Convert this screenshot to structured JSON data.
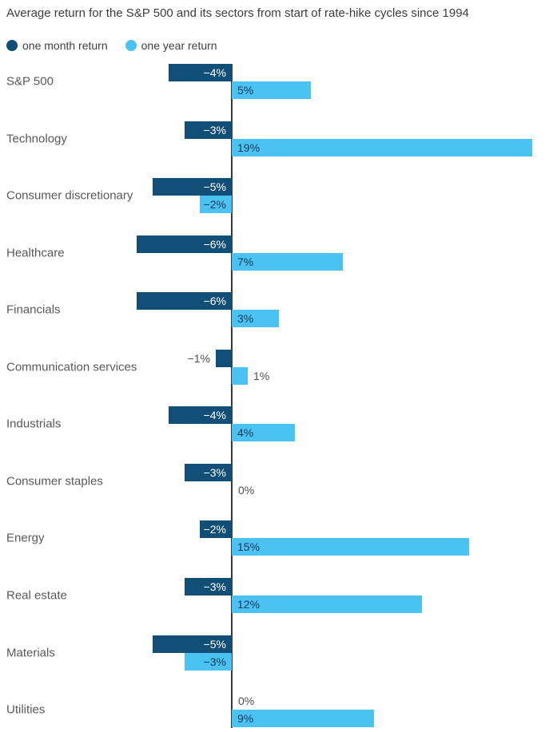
{
  "title": "Average return for the S&P 500 and its sectors from start of rate-hike cycles since 1994",
  "colors": {
    "one_month": "#114e78",
    "one_year": "#4ac2f2",
    "axis": "#383838",
    "inside_dark_text": "#ffffff",
    "inside_light_text": "#16395b",
    "outside_text": "#4f4f4f"
  },
  "legend": {
    "items": [
      {
        "label": "one month return"
      },
      {
        "label": "one year return"
      }
    ]
  },
  "chart_data": {
    "type": "bar",
    "orientation": "horizontal",
    "title": "Average return for the S&P 500 and its sectors from start of rate-hike cycles since 1994",
    "xlim": [
      -6,
      20
    ],
    "grid": false,
    "legend_position": "top-left",
    "categories": [
      "S&P 500",
      "Technology",
      "Consumer discretionary",
      "Healthcare",
      "Financials",
      "Communication services",
      "Industrials",
      "Consumer staples",
      "Energy",
      "Real estate",
      "Materials",
      "Utilities"
    ],
    "series": [
      {
        "name": "one month return",
        "values": [
          -4,
          -3,
          -5,
          -6,
          -6,
          -1,
          -4,
          -3,
          -2,
          -3,
          -5,
          0
        ],
        "labels": [
          "−4%",
          "−3%",
          "−5%",
          "−6%",
          "−6%",
          "−1%",
          "−4%",
          "−3%",
          "−2%",
          "−3%",
          "−5%",
          "0%"
        ]
      },
      {
        "name": "one year return",
        "values": [
          5,
          19,
          -2,
          7,
          3,
          1,
          4,
          0,
          15,
          12,
          -3,
          9
        ],
        "labels": [
          "5%",
          "19%",
          "−2%",
          "7%",
          "3%",
          "1%",
          "4%",
          "0%",
          "15%",
          "12%",
          "−3%",
          "9%"
        ]
      }
    ]
  }
}
